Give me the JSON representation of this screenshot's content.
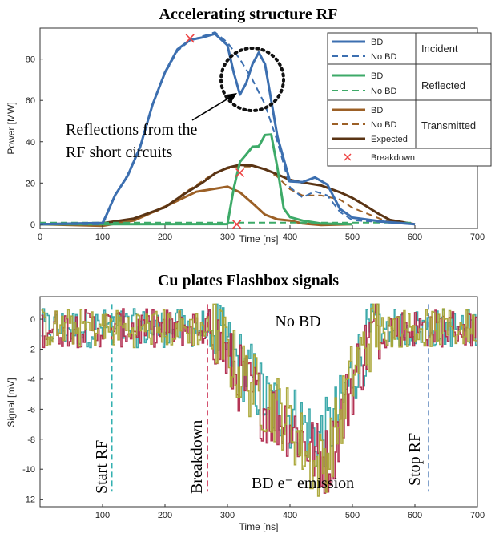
{
  "chart_data": [
    {
      "type": "line",
      "title": "Accelerating structure RF",
      "xlabel": "Time [ns]",
      "ylabel": "Power [MW]",
      "xlim": [
        0,
        700
      ],
      "ylim": [
        -2,
        95
      ],
      "xticks": [
        "0",
        "100",
        "200",
        "300",
        "400",
        "500",
        "600",
        "700"
      ],
      "yticks": [
        "0",
        "20",
        "40",
        "60",
        "80"
      ],
      "grid": false,
      "legend_position": "top-right",
      "legend_groups": [
        {
          "label": "Incident",
          "entries": [
            "BD",
            "No BD"
          ]
        },
        {
          "label": "Reflected",
          "entries": [
            "BD",
            "No BD"
          ]
        },
        {
          "label": "Transmitted",
          "entries": [
            "BD",
            "No BD",
            "Expected"
          ]
        }
      ],
      "legend_breakdown": "Breakdown",
      "annotation": [
        "Reflections from the",
        "RF short circuits"
      ],
      "colors": {
        "incident": "#3c6fb0",
        "reflected": "#3daa68",
        "transmitted": "#9c6026",
        "expected": "#5a3414",
        "breakdown": "#ee4444"
      },
      "series": [
        {
          "group": "Incident",
          "name": "BD",
          "style": "solid",
          "x": [
            0,
            100,
            105,
            120,
            140,
            160,
            180,
            200,
            220,
            240,
            260,
            280,
            300,
            310,
            320,
            330,
            340,
            350,
            360,
            380,
            400,
            420,
            440,
            460,
            480,
            500,
            550,
            600
          ],
          "y": [
            0,
            0,
            3,
            14,
            24,
            38,
            58,
            73,
            84,
            89,
            91,
            93,
            87,
            73,
            62,
            68,
            78,
            84,
            78,
            42,
            20,
            20,
            23,
            20,
            8,
            3,
            0.5,
            0
          ]
        },
        {
          "group": "Incident",
          "name": "No BD",
          "style": "dashed",
          "x": [
            0,
            100,
            105,
            120,
            140,
            160,
            180,
            200,
            220,
            240,
            260,
            280,
            300,
            320,
            340,
            360,
            380,
            400,
            420,
            440,
            460,
            480,
            500,
            600
          ],
          "y": [
            0,
            0,
            3,
            14,
            24,
            38,
            58,
            73,
            84,
            89,
            91,
            93,
            88,
            80,
            70,
            58,
            40,
            18,
            13,
            16,
            14,
            6,
            2,
            0
          ]
        },
        {
          "group": "Reflected",
          "name": "BD",
          "style": "solid",
          "x": [
            0,
            300,
            310,
            320,
            330,
            340,
            350,
            360,
            370,
            380,
            390,
            400,
            420,
            450,
            500
          ],
          "y": [
            0,
            0,
            18,
            31,
            34,
            37,
            37,
            43,
            44,
            28,
            8,
            3,
            1,
            0,
            0
          ]
        },
        {
          "group": "Reflected",
          "name": "No BD",
          "style": "dashed",
          "x": [
            0,
            600
          ],
          "y": [
            0.8,
            0.8
          ]
        },
        {
          "group": "Transmitted",
          "name": "BD",
          "style": "solid",
          "x": [
            0,
            100,
            150,
            200,
            250,
            300,
            320,
            340,
            360,
            380,
            400,
            420,
            450,
            500
          ],
          "y": [
            0,
            0,
            2,
            8,
            15,
            18,
            16,
            11,
            5,
            2,
            1,
            0,
            0,
            0
          ]
        },
        {
          "group": "Transmitted",
          "name": "No BD",
          "style": "dashed",
          "x": [
            0,
            100,
            150,
            200,
            230,
            260,
            280,
            300,
            320,
            340,
            360,
            380,
            400,
            420,
            450,
            480,
            500,
            550,
            600
          ],
          "y": [
            0,
            0,
            2,
            8,
            15,
            21,
            25,
            27,
            28,
            28,
            27,
            23,
            17,
            14,
            14,
            12,
            8,
            2,
            0
          ]
        },
        {
          "group": "Transmitted",
          "name": "Expected",
          "style": "solid",
          "x": [
            0,
            100,
            150,
            200,
            230,
            260,
            280,
            300,
            320,
            340,
            360,
            380,
            400,
            420,
            450,
            480,
            500,
            520,
            540,
            560,
            600
          ],
          "y": [
            0,
            0,
            2,
            8,
            15,
            21,
            25,
            27,
            28,
            28,
            27,
            25,
            22,
            20,
            18,
            15,
            13,
            10,
            6,
            2,
            0
          ]
        }
      ],
      "breakdown_markers": [
        {
          "x": 240,
          "y": 90
        },
        {
          "x": 320,
          "y": 25
        },
        {
          "x": 315,
          "y": 0
        }
      ]
    },
    {
      "type": "line",
      "title": "Cu plates Flashbox signals",
      "xlabel": "Time [ns]",
      "ylabel": "Signal [mV]",
      "xlim": [
        0,
        700
      ],
      "ylim": [
        -12.5,
        1.5
      ],
      "xticks": [
        "100",
        "200",
        "300",
        "400",
        "500",
        "600",
        "700"
      ],
      "yticks": [
        "0",
        "-2",
        "-4",
        "-6",
        "-8",
        "-10",
        "-12"
      ],
      "grid": false,
      "annotations": {
        "no_bd": "No BD",
        "start_rf": "Start RF",
        "breakdown": "Breakdown",
        "emission": "BD e⁻ emission",
        "stop_rf": "Stop RF"
      },
      "colors": {
        "cyan": "#34a5a6",
        "crimson": "#b0294c",
        "olive": "#a9a535",
        "start_line": "#33b0b0",
        "bd_line": "#cc3355",
        "stop_line": "#3c6fb0"
      },
      "vlines": [
        {
          "x": 115,
          "ylim": [
            -11.5,
            1
          ]
        },
        {
          "x": 268,
          "ylim": [
            -11.5,
            1
          ]
        },
        {
          "x": 622,
          "ylim": [
            -11.5,
            1
          ]
        }
      ],
      "series": [
        {
          "color": "cyan",
          "envelope": {
            "x": [
              0,
              270,
              290,
              310,
              340,
              360,
              380,
              400,
              420,
              440,
              460,
              480,
              500,
              530,
              550,
              700
            ],
            "y": [
              0,
              0,
              -1.5,
              -2.5,
              -4,
              -5.5,
              -6,
              -6.5,
              -7,
              -8,
              -7.5,
              -6,
              -3.5,
              -1,
              0,
              0
            ]
          }
        },
        {
          "color": "crimson",
          "envelope": {
            "x": [
              0,
              270,
              290,
              310,
              340,
              360,
              380,
              400,
              420,
              440,
              460,
              480,
              500,
              530,
              550,
              700
            ],
            "y": [
              0,
              0,
              -2,
              -3.5,
              -5,
              -6,
              -6.5,
              -7,
              -8,
              -9,
              -9.5,
              -7,
              -4,
              -1,
              0,
              0
            ]
          }
        },
        {
          "color": "olive",
          "envelope": {
            "x": [
              0,
              270,
              290,
              310,
              340,
              360,
              380,
              400,
              420,
              440,
              460,
              480,
              500,
              530,
              550,
              700
            ],
            "y": [
              0,
              0,
              -1.5,
              -3,
              -4.5,
              -5.5,
              -6,
              -7,
              -8.5,
              -10,
              -9,
              -6.5,
              -3.5,
              -1,
              0,
              0
            ]
          }
        }
      ]
    }
  ]
}
